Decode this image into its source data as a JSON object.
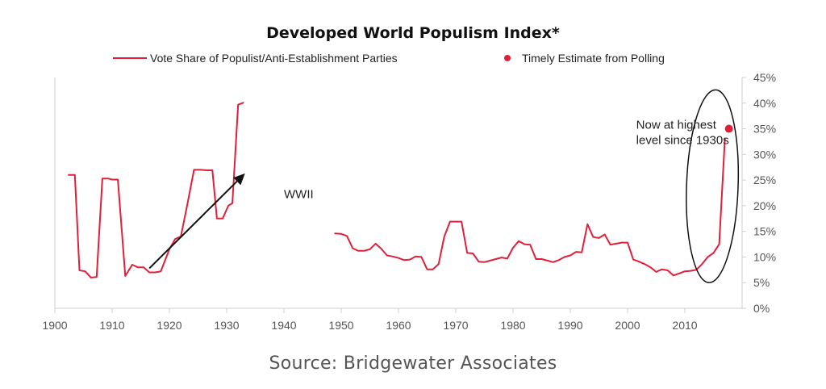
{
  "chart_data": {
    "type": "line",
    "title": "Developed World Populism Index*",
    "source": "Source: Bridgewater Associates",
    "colors": {
      "series": "#e0203a",
      "axis": "#cfcfcf",
      "ellipse": "#111111",
      "arrow": "#111111"
    },
    "xlim": [
      1900,
      2020
    ],
    "ylim": [
      0,
      45
    ],
    "x_ticks": [
      1900,
      1910,
      1920,
      1930,
      1940,
      1950,
      1960,
      1970,
      1980,
      1990,
      2000,
      2010
    ],
    "y_ticks": [
      0,
      5,
      10,
      15,
      20,
      25,
      30,
      35,
      40,
      45
    ],
    "y_tick_labels": [
      "0%",
      "5%",
      "10%",
      "15%",
      "20%",
      "25%",
      "30%",
      "35%",
      "40%",
      "45%"
    ],
    "legend": [
      "Vote Share of Populist/Anti-Establishment Parties",
      "Timely Estimate from Polling"
    ],
    "series": [
      {
        "name": "Vote Share of Populist/Anti-Establishment Parties",
        "segments": [
          [
            [
              1902.3,
              26
            ],
            [
              1903.5,
              26
            ],
            [
              1904.3,
              7.4
            ],
            [
              1905.3,
              7.2
            ],
            [
              1906.3,
              6
            ],
            [
              1907.3,
              6.1
            ],
            [
              1908.3,
              25.3
            ],
            [
              1909.3,
              25.3
            ],
            [
              1910,
              25.1
            ],
            [
              1911,
              25.1
            ],
            [
              1912.3,
              6.3
            ],
            [
              1913.5,
              8.5
            ],
            [
              1914.5,
              8
            ],
            [
              1915.5,
              8
            ],
            [
              1916.5,
              7
            ],
            [
              1917.5,
              7
            ],
            [
              1918.5,
              7.2
            ],
            [
              1920,
              11.5
            ],
            [
              1921,
              13.5
            ],
            [
              1922,
              14
            ],
            [
              1923,
              19.5
            ],
            [
              1924.3,
              27
            ],
            [
              1925.5,
              27
            ],
            [
              1926.5,
              26.9
            ],
            [
              1927.5,
              26.9
            ],
            [
              1928.3,
              17.5
            ],
            [
              1929.3,
              17.5
            ],
            [
              1930.3,
              20
            ],
            [
              1931,
              20.5
            ],
            [
              1932,
              39.7
            ],
            [
              1933,
              40.1
            ]
          ],
          [
            [
              1948.8,
              14.6
            ],
            [
              1950,
              14.5
            ],
            [
              1951,
              14.1
            ],
            [
              1952,
              11.7
            ],
            [
              1953,
              11.2
            ],
            [
              1954,
              11.2
            ],
            [
              1955,
              11.5
            ],
            [
              1956,
              12.6
            ],
            [
              1957,
              11.6
            ],
            [
              1958,
              10.3
            ],
            [
              1959,
              10.1
            ],
            [
              1960,
              9.8
            ],
            [
              1961,
              9.4
            ],
            [
              1962,
              9.5
            ],
            [
              1963,
              10.1
            ],
            [
              1964,
              10
            ],
            [
              1965,
              7.6
            ],
            [
              1966,
              7.6
            ],
            [
              1967,
              8.6
            ],
            [
              1968,
              14
            ],
            [
              1969,
              16.9
            ],
            [
              1970,
              16.9
            ],
            [
              1971,
              16.9
            ],
            [
              1972,
              10.8
            ],
            [
              1973,
              10.7
            ],
            [
              1974,
              9.1
            ],
            [
              1975,
              9
            ],
            [
              1976,
              9.3
            ],
            [
              1977,
              9.6
            ],
            [
              1978,
              9.9
            ],
            [
              1979,
              9.7
            ],
            [
              1980,
              11.8
            ],
            [
              1981,
              13.1
            ],
            [
              1982,
              12.5
            ],
            [
              1983,
              12.4
            ],
            [
              1984,
              9.6
            ],
            [
              1985,
              9.6
            ],
            [
              1986,
              9.3
            ],
            [
              1987,
              9
            ],
            [
              1988,
              9.4
            ],
            [
              1989,
              10
            ],
            [
              1990,
              10.3
            ],
            [
              1991,
              11
            ],
            [
              1992,
              10.9
            ],
            [
              1993,
              16.4
            ],
            [
              1994,
              13.9
            ],
            [
              1995,
              13.7
            ],
            [
              1996,
              14.4
            ],
            [
              1997,
              12.4
            ],
            [
              1998,
              12.6
            ],
            [
              1999,
              12.8
            ],
            [
              2000,
              12.8
            ],
            [
              2001,
              9.5
            ],
            [
              2002,
              9.1
            ],
            [
              2003,
              8.6
            ],
            [
              2004,
              8
            ],
            [
              2005,
              7.1
            ],
            [
              2006,
              7.6
            ],
            [
              2007,
              7.4
            ],
            [
              2008,
              6.4
            ],
            [
              2009,
              6.8
            ],
            [
              2010,
              7.2
            ],
            [
              2011,
              7.3
            ],
            [
              2012,
              7.5
            ],
            [
              2013,
              8.6
            ],
            [
              2014,
              10
            ],
            [
              2015,
              10.8
            ],
            [
              2016,
              12.5
            ],
            [
              2017,
              33.2
            ]
          ]
        ]
      }
    ],
    "estimate_point": [
      2017.7,
      35
    ],
    "annotations": {
      "wwii": {
        "text": "WWII",
        "x": 1940,
        "y": 21.5
      },
      "now": {
        "lines": [
          "Now at highest",
          "level since 1930s"
        ],
        "x": 2001.5,
        "y": 35
      },
      "arrow": {
        "from": [
          1916.5,
          7.8
        ],
        "to": [
          1933.2,
          26.3
        ]
      },
      "ellipse": {
        "center": [
          2014.8,
          23.8
        ],
        "radius": [
          4.5,
          18.8
        ],
        "rotate": 2
      }
    }
  }
}
